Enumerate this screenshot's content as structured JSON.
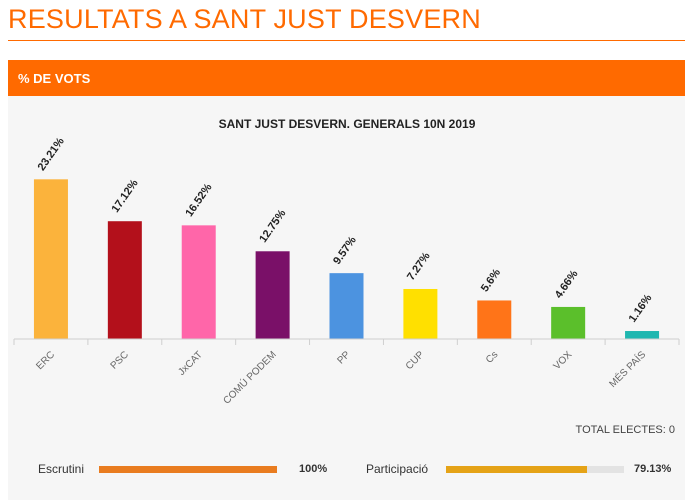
{
  "header": {
    "title": "RESULTATS A SANT JUST DESVERN",
    "section": "% DE VOTS"
  },
  "chart_data": {
    "type": "bar",
    "title": "SANT JUST DESVERN. GENERALS 10N 2019",
    "xlabel": "",
    "ylabel": "",
    "ylim": [
      0,
      25
    ],
    "grid": false,
    "categories": [
      "ERC",
      "PSC",
      "JxCAT",
      "COMÚ PODEM",
      "PP",
      "CUP",
      "Cs",
      "VOX",
      "MÉS PAÍS"
    ],
    "values": [
      23.21,
      17.12,
      16.52,
      12.75,
      9.57,
      7.27,
      5.6,
      4.66,
      1.16
    ],
    "value_labels": [
      "23.21%",
      "17.12%",
      "16.52%",
      "12.75%",
      "9.57%",
      "7.27%",
      "5.6%",
      "4.66%",
      "1.16%"
    ],
    "colors": [
      "#fbb33c",
      "#b3101b",
      "#ff66a9",
      "#7a1068",
      "#4c93e0",
      "#ffe000",
      "#ff7418",
      "#5bbf2b",
      "#20b7b0"
    ]
  },
  "footer": {
    "total_electes": "TOTAL ELECTES: 0",
    "escrutini": {
      "label": "Escrutini",
      "value": "100%",
      "fraction": 1.0,
      "color": "#e97c1f"
    },
    "participacio": {
      "label": "Participació",
      "value": "79.13%",
      "fraction": 0.7913,
      "color": "#e5a317"
    }
  }
}
